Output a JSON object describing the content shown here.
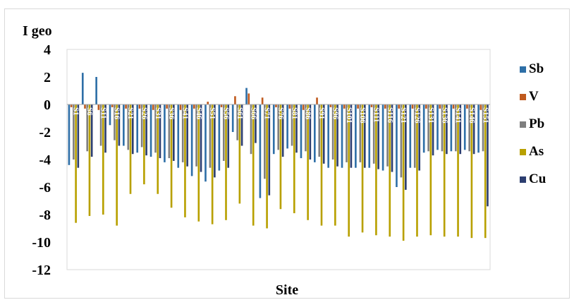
{
  "chart_data": {
    "type": "bar",
    "title": "",
    "ylabel": "I geo",
    "xlabel": "Site",
    "ylim": [
      -12,
      4
    ],
    "yticks": [
      4,
      2,
      0,
      -2,
      -4,
      -6,
      -8,
      -10,
      -12
    ],
    "grid": false,
    "legend_position": "right",
    "categories": [
      "S1",
      "S6",
      "S11",
      "S16",
      "S21",
      "S26",
      "S31",
      "S36",
      "S41",
      "S46",
      "S51",
      "S56",
      "S61",
      "S66",
      "S71",
      "S76",
      "S81",
      "S86",
      "S91",
      "S96",
      "S101",
      "S106",
      "S111",
      "S116",
      "S121",
      "S126",
      "S131",
      "S136",
      "S141",
      "S146",
      "S151"
    ],
    "series": [
      {
        "name": "Sb",
        "color": "#2e6fa7",
        "values": [
          -4.4,
          2.3,
          2.0,
          -1.5,
          -3.0,
          -3.5,
          -3.8,
          -4.2,
          -4.6,
          -5.2,
          -5.6,
          -4.8,
          -2.0,
          1.2,
          -6.8,
          -3.6,
          -3.2,
          -3.9,
          -4.2,
          -4.6,
          -4.6,
          -4.6,
          -4.6,
          -4.8,
          -6.0,
          -4.6,
          -3.5,
          -3.3,
          -3.4,
          -3.3,
          -3.5
        ]
      },
      {
        "name": "V",
        "color": "#c05a1e",
        "values": [
          -0.2,
          -0.3,
          -0.4,
          -0.2,
          -0.3,
          -0.3,
          -0.4,
          -0.3,
          -0.4,
          -0.3,
          0.2,
          -0.2,
          0.6,
          0.8,
          0.5,
          -0.2,
          -0.3,
          -0.4,
          0.5,
          -0.2,
          -0.3,
          -0.3,
          -0.2,
          -0.3,
          -0.3,
          -0.3,
          -0.3,
          -0.3,
          -0.3,
          -0.3,
          -0.4
        ]
      },
      {
        "name": "Pb",
        "color": "#7f7f7f",
        "values": [
          -4.0,
          -3.4,
          -3.0,
          -2.6,
          -3.3,
          -3.1,
          -3.5,
          -3.9,
          -4.2,
          -4.5,
          -4.6,
          -4.1,
          -2.6,
          -3.6,
          -5.4,
          -3.3,
          -3.0,
          -3.4,
          -3.8,
          -4.0,
          -4.2,
          -4.2,
          -4.3,
          -4.5,
          -5.3,
          -4.6,
          -3.4,
          -3.4,
          -3.4,
          -3.4,
          -3.4
        ]
      },
      {
        "name": "As",
        "color": "#b8a000",
        "values": [
          -8.6,
          -8.1,
          -8.0,
          -8.8,
          -6.5,
          -5.8,
          -6.5,
          -7.5,
          -8.2,
          -8.5,
          -8.7,
          -8.4,
          -7.2,
          -8.8,
          -9.0,
          -7.6,
          -7.9,
          -8.4,
          -8.8,
          -8.8,
          -9.6,
          -9.3,
          -9.5,
          -9.6,
          -9.9,
          -9.6,
          -9.5,
          -9.6,
          -9.6,
          -9.7,
          -9.7
        ]
      },
      {
        "name": "Cu",
        "color": "#2c3e70",
        "values": [
          -4.6,
          -3.8,
          -3.5,
          -3.0,
          -3.6,
          -3.7,
          -3.9,
          -4.1,
          -4.5,
          -4.9,
          -5.3,
          -4.6,
          -3.0,
          -2.8,
          -6.6,
          -3.8,
          -3.5,
          -4.0,
          -4.3,
          -4.5,
          -4.6,
          -4.6,
          -4.7,
          -4.9,
          -6.2,
          -4.8,
          -3.7,
          -3.6,
          -3.6,
          -3.6,
          -7.4
        ]
      }
    ]
  }
}
